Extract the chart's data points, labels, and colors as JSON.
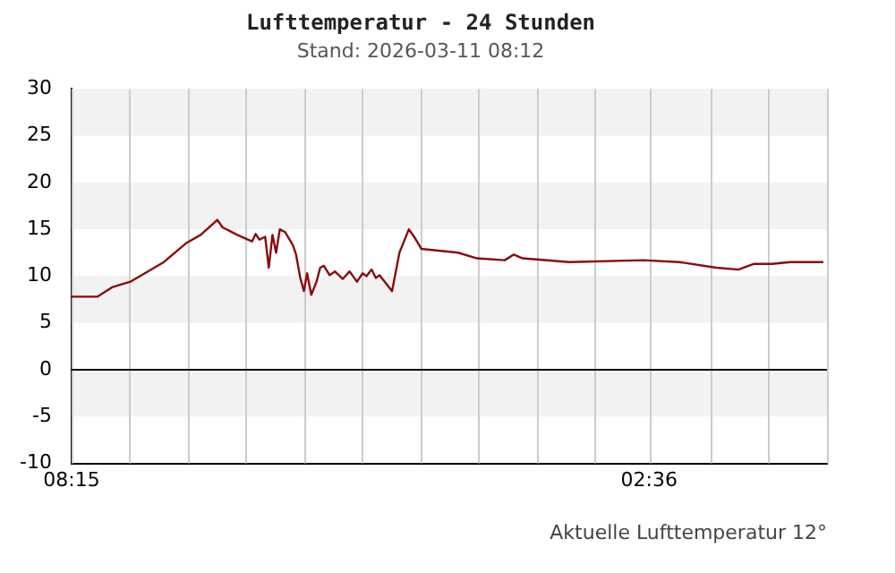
{
  "chart_data": {
    "type": "line",
    "title": "Lufttemperatur - 24 Stunden",
    "subtitle": "Stand: 2026-03-11 08:12",
    "annotations": [
      "Aktuelle Lufttemperatur 12°"
    ],
    "xlim": [
      "2026-03-10T08:15",
      "2026-03-11T08:15"
    ],
    "xticks": [
      {
        "value": "2026-03-10T08:15",
        "label": "08:15"
      },
      {
        "value": "2026-03-10T10:06",
        "label": null
      },
      {
        "value": "2026-03-10T11:56",
        "label": null
      },
      {
        "value": "2026-03-10T13:47",
        "label": null
      },
      {
        "value": "2026-03-10T15:38",
        "label": null
      },
      {
        "value": "2026-03-10T17:29",
        "label": null
      },
      {
        "value": "2026-03-10T19:20",
        "label": null
      },
      {
        "value": "2026-03-10T21:10",
        "label": null
      },
      {
        "value": "2026-03-10T23:01",
        "label": null
      },
      {
        "value": "2026-03-11T00:52",
        "label": null
      },
      {
        "value": "2026-03-11T02:36",
        "label": "02:36"
      },
      {
        "value": "2026-03-11T04:34",
        "label": null
      },
      {
        "value": "2026-03-11T06:24",
        "label": null
      },
      {
        "value": "2026-03-11T08:15",
        "label": null
      }
    ],
    "ylim": [
      -10,
      30
    ],
    "yticks": [
      -10,
      -5,
      0,
      5,
      10,
      15,
      20,
      25,
      30
    ],
    "grid": true,
    "legend": false,
    "marker": "none",
    "line_style": "solid",
    "ref_lines": [
      {
        "axis": "y",
        "value": 0,
        "color": "#000000"
      }
    ],
    "series": [
      {
        "color": "#8b0a0a",
        "x": [
          "2026-03-10T08:15",
          "2026-03-10T09:04",
          "2026-03-10T09:32",
          "2026-03-10T10:07",
          "2026-03-10T11:11",
          "2026-03-10T11:53",
          "2026-03-10T12:21",
          "2026-03-10T12:53",
          "2026-03-10T13:03",
          "2026-03-10T13:31",
          "2026-03-10T13:59",
          "2026-03-10T14:06",
          "2026-03-10T14:13",
          "2026-03-10T14:24",
          "2026-03-10T14:31",
          "2026-03-10T14:38",
          "2026-03-10T14:45",
          "2026-03-10T14:52",
          "2026-03-10T15:02",
          "2026-03-10T15:17",
          "2026-03-10T15:23",
          "2026-03-10T15:31",
          "2026-03-10T15:38",
          "2026-03-10T15:44",
          "2026-03-10T15:52",
          "2026-03-10T16:02",
          "2026-03-10T16:09",
          "2026-03-10T16:16",
          "2026-03-10T16:27",
          "2026-03-10T16:37",
          "2026-03-10T16:52",
          "2026-03-10T17:05",
          "2026-03-10T17:19",
          "2026-03-10T17:30",
          "2026-03-10T17:37",
          "2026-03-10T17:47",
          "2026-03-10T17:55",
          "2026-03-10T18:02",
          "2026-03-10T18:26",
          "2026-03-10T18:40",
          "2026-03-10T18:58",
          "2026-03-10T19:08",
          "2026-03-10T19:22",
          "2026-03-10T20:32",
          "2026-03-10T21:08",
          "2026-03-10T22:01",
          "2026-03-10T22:18",
          "2026-03-10T22:35",
          "2026-03-11T00:04",
          "2026-03-11T02:24",
          "2026-03-11T03:34",
          "2026-03-11T04:44",
          "2026-03-11T05:26",
          "2026-03-11T05:55",
          "2026-03-11T06:30",
          "2026-03-11T07:05",
          "2026-03-11T08:08"
        ],
        "values": [
          7.8,
          7.8,
          8.8,
          9.4,
          11.5,
          13.5,
          14.4,
          16.0,
          15.2,
          14.4,
          13.7,
          14.5,
          13.9,
          14.2,
          10.9,
          14.4,
          12.5,
          15.0,
          14.7,
          13.3,
          12.3,
          9.8,
          8.4,
          10.3,
          8.0,
          9.4,
          10.9,
          11.1,
          10.1,
          10.5,
          9.7,
          10.5,
          9.4,
          10.3,
          10.0,
          10.7,
          9.8,
          10.1,
          8.4,
          12.5,
          15.0,
          14.2,
          12.9,
          12.5,
          11.9,
          11.7,
          12.3,
          11.9,
          11.5,
          11.7,
          11.5,
          10.9,
          10.7,
          11.3,
          11.3,
          11.5,
          11.5
        ]
      }
    ]
  }
}
